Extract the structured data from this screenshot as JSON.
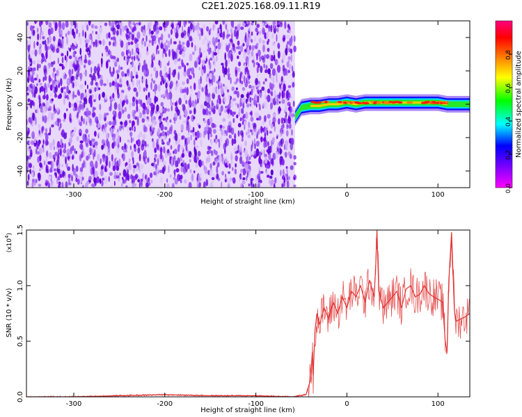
{
  "title": "C2E1.2025.168.09.11.R19",
  "chart_data": [
    {
      "type": "heatmap",
      "xlabel": "Height of straight line (km)",
      "ylabel": "Frequency (Hz)",
      "xlim": [
        -352,
        135
      ],
      "ylim": [
        -50,
        50
      ],
      "x_ticks": [
        -300,
        -200,
        -100,
        0,
        100
      ],
      "x_tick_labels": [
        "-300",
        "-200",
        "-100",
        "0",
        "100"
      ],
      "y_ticks": [
        -40,
        -20,
        0,
        20,
        40
      ],
      "y_tick_labels": [
        "-40",
        "-20",
        "0",
        "20",
        "40"
      ],
      "colorbar": {
        "label": "Normalized spectral amplitude",
        "range": [
          0,
          1
        ],
        "ticks": [
          0.0,
          0.2,
          0.4,
          0.6,
          0.8
        ],
        "tick_labels": [
          "0.0",
          "0.2",
          "0.4",
          "0.6",
          "0.8"
        ],
        "colormap": [
          "#ff00ff",
          "#8000ff",
          "#0000ff",
          "#00ffff",
          "#00ff00",
          "#ffff00",
          "#ff8000",
          "#ff0000",
          "#ff0080"
        ]
      },
      "noise_region": {
        "x_range": [
          -352,
          -57
        ],
        "dominant_amplitude": 0.1,
        "color": "#7000e0"
      },
      "signal_track": [
        {
          "x": -57,
          "freq": -8
        },
        {
          "x": -50,
          "freq": -2
        },
        {
          "x": -40,
          "freq": -1
        },
        {
          "x": -30,
          "freq": -1
        },
        {
          "x": -20,
          "freq": 0
        },
        {
          "x": -10,
          "freq": 0
        },
        {
          "x": 0,
          "freq": 1
        },
        {
          "x": 10,
          "freq": 0
        },
        {
          "x": 20,
          "freq": 1
        },
        {
          "x": 40,
          "freq": 1
        },
        {
          "x": 60,
          "freq": 1
        },
        {
          "x": 80,
          "freq": 1
        },
        {
          "x": 100,
          "freq": 1
        },
        {
          "x": 110,
          "freq": 0
        },
        {
          "x": 120,
          "freq": 0
        },
        {
          "x": 135,
          "freq": 0
        }
      ],
      "signal_peak": {
        "x_range": [
          -40,
          110
        ],
        "freq": 1,
        "amplitude": 0.95
      }
    },
    {
      "type": "line",
      "xlabel": "Height of straight line (km)",
      "ylabel": "SNR (10 * v/v)",
      "y_multiplier": "(x10^4)",
      "xlim": [
        -352,
        135
      ],
      "ylim": [
        0,
        1.5
      ],
      "x_ticks": [
        -300,
        -200,
        -100,
        0,
        100
      ],
      "x_tick_labels": [
        "-300",
        "-200",
        "-100",
        "0",
        "100"
      ],
      "y_ticks": [
        0.0,
        0.5,
        1.0,
        1.5
      ],
      "y_tick_labels": [
        "0.0",
        "0.5",
        "1.0",
        "1.5"
      ],
      "line_color": "#e03030",
      "series": [
        {
          "x": [
            -352,
            -300,
            -250,
            -200,
            -150,
            -100,
            -60,
            -45,
            -40,
            -38,
            -37,
            -35,
            -33,
            -30,
            -25,
            -20,
            -15,
            -10,
            -5,
            0,
            5,
            10,
            15,
            20,
            25,
            30,
            32,
            33,
            35,
            40,
            45,
            50,
            55,
            60,
            65,
            70,
            75,
            80,
            85,
            90,
            95,
            100,
            105,
            108,
            110,
            112,
            115,
            118,
            120,
            125,
            130,
            135
          ],
          "values": [
            0.0,
            0.0,
            0.01,
            0.02,
            0.01,
            0.01,
            0.0,
            0.02,
            0.15,
            0.4,
            0.2,
            0.6,
            0.75,
            0.65,
            0.8,
            0.7,
            0.85,
            0.75,
            0.9,
            0.8,
            0.95,
            0.9,
            1.0,
            0.85,
            1.05,
            0.9,
            1.25,
            1.5,
            0.95,
            0.8,
            0.85,
            0.9,
            0.95,
            0.8,
            0.97,
            1.0,
            0.9,
            0.92,
            1.0,
            0.93,
            0.9,
            0.88,
            0.85,
            0.5,
            0.4,
            1.05,
            1.48,
            0.78,
            0.68,
            0.7,
            0.72,
            0.75
          ]
        }
      ]
    }
  ]
}
